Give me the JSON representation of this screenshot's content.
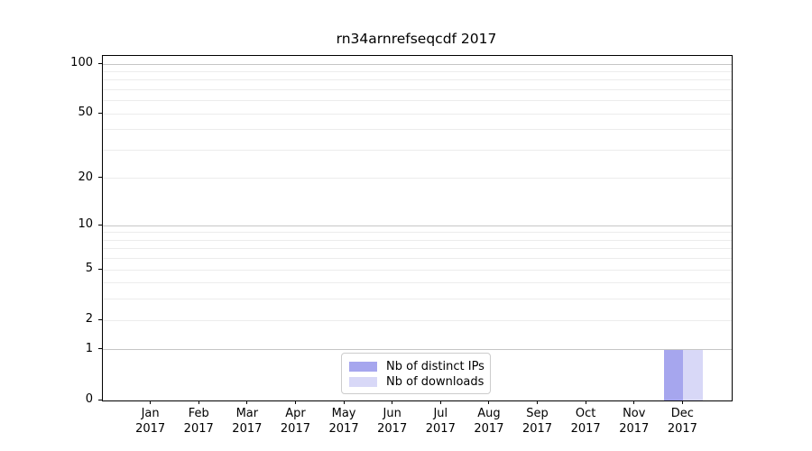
{
  "figure": {
    "title": "rn34arnrefseqcdf 2017"
  },
  "chart_data": {
    "type": "bar",
    "title": "rn34arnrefseqcdf 2017",
    "x_categories": [
      {
        "month": "Jan",
        "year": "2017"
      },
      {
        "month": "Feb",
        "year": "2017"
      },
      {
        "month": "Mar",
        "year": "2017"
      },
      {
        "month": "Apr",
        "year": "2017"
      },
      {
        "month": "May",
        "year": "2017"
      },
      {
        "month": "Jun",
        "year": "2017"
      },
      {
        "month": "Jul",
        "year": "2017"
      },
      {
        "month": "Aug",
        "year": "2017"
      },
      {
        "month": "Sep",
        "year": "2017"
      },
      {
        "month": "Oct",
        "year": "2017"
      },
      {
        "month": "Nov",
        "year": "2017"
      },
      {
        "month": "Dec",
        "year": "2017"
      }
    ],
    "series": [
      {
        "name": "Nb of distinct IPs",
        "color": "#a6a6ee",
        "values": [
          0,
          0,
          0,
          0,
          0,
          0,
          0,
          0,
          0,
          0,
          0,
          1
        ]
      },
      {
        "name": "Nb of downloads",
        "color": "#d8d8f7",
        "values": [
          0,
          0,
          0,
          0,
          0,
          0,
          0,
          0,
          0,
          0,
          0,
          1
        ]
      }
    ],
    "yscale": "log1p",
    "yticks": [
      0,
      1,
      2,
      5,
      10,
      20,
      50,
      100
    ],
    "ylim": [
      0,
      112
    ],
    "grid": {
      "major_values": [
        1,
        10,
        100
      ],
      "minor_values": [
        2,
        3,
        4,
        5,
        6,
        7,
        8,
        9,
        20,
        30,
        40,
        50,
        60,
        70,
        80,
        90
      ]
    },
    "legend": {
      "position": "lower center"
    }
  },
  "colors": {
    "major_grid": "#c6c6c6",
    "minor_grid": "#ececec",
    "spine": "#000000",
    "text": "#000000",
    "legend_border": "#cccccc"
  }
}
